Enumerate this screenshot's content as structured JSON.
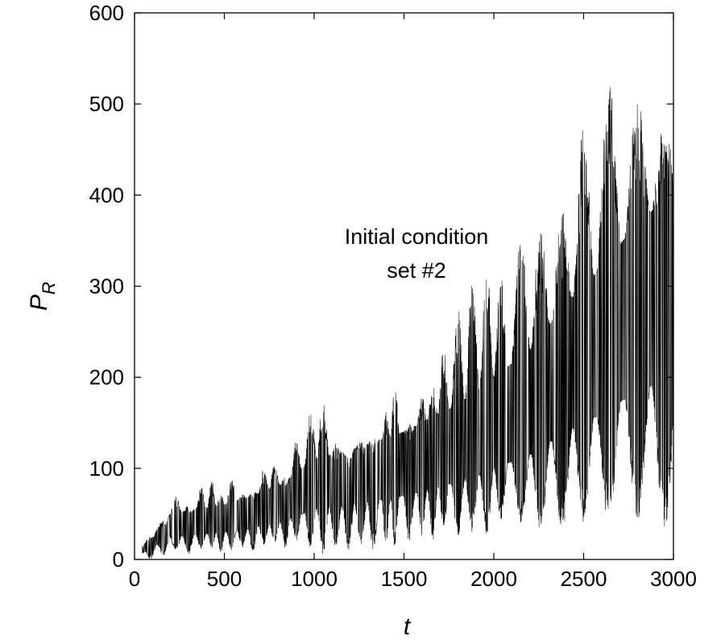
{
  "chart_data": {
    "type": "line",
    "title": "",
    "xlabel": "t",
    "ylabel_main": "P",
    "ylabel_sub": "R",
    "xlim": [
      0,
      3000
    ],
    "ylim": [
      0,
      600
    ],
    "xticks": [
      0,
      500,
      1000,
      1500,
      2000,
      2500,
      3000
    ],
    "yticks": [
      0,
      100,
      200,
      300,
      400,
      500,
      600
    ],
    "grid": false,
    "annotation": [
      "Initial condition",
      "set #2"
    ],
    "series": [
      {
        "style": "dense-oscillation",
        "color": "#000000",
        "burst_centers": [
          90,
          160,
          230,
          300,
          370,
          430,
          480,
          540,
          600,
          660,
          720,
          780,
          840,
          900,
          980,
          1050,
          1120,
          1190,
          1260,
          1330,
          1400,
          1450,
          1530,
          1600,
          1660,
          1720,
          1800,
          1880,
          1960,
          2040,
          2150,
          2260,
          2380,
          2500,
          2640,
          2800,
          2950
        ],
        "burst_max": [
          25,
          40,
          60,
          55,
          70,
          75,
          65,
          80,
          60,
          70,
          85,
          90,
          80,
          115,
          160,
          175,
          120,
          105,
          115,
          125,
          150,
          185,
          130,
          155,
          175,
          220,
          255,
          280,
          305,
          270,
          330,
          340,
          355,
          440,
          505,
          470,
          450
        ],
        "burst_min": [
          0,
          2,
          10,
          5,
          10,
          12,
          8,
          10,
          12,
          8,
          15,
          18,
          12,
          20,
          10,
          5,
          8,
          8,
          15,
          10,
          15,
          10,
          20,
          25,
          20,
          30,
          25,
          30,
          25,
          40,
          40,
          30,
          30,
          40,
          35,
          40,
          30
        ],
        "baseline": [
          [
            0,
            2
          ],
          [
            200,
            25
          ],
          [
            500,
            30
          ],
          [
            800,
            40
          ],
          [
            1000,
            55
          ],
          [
            1200,
            60
          ],
          [
            1500,
            70
          ],
          [
            1800,
            85
          ],
          [
            2000,
            100
          ],
          [
            2200,
            115
          ],
          [
            2400,
            140
          ],
          [
            2600,
            160
          ],
          [
            2800,
            185
          ],
          [
            3000,
            200
          ]
        ]
      }
    ]
  }
}
